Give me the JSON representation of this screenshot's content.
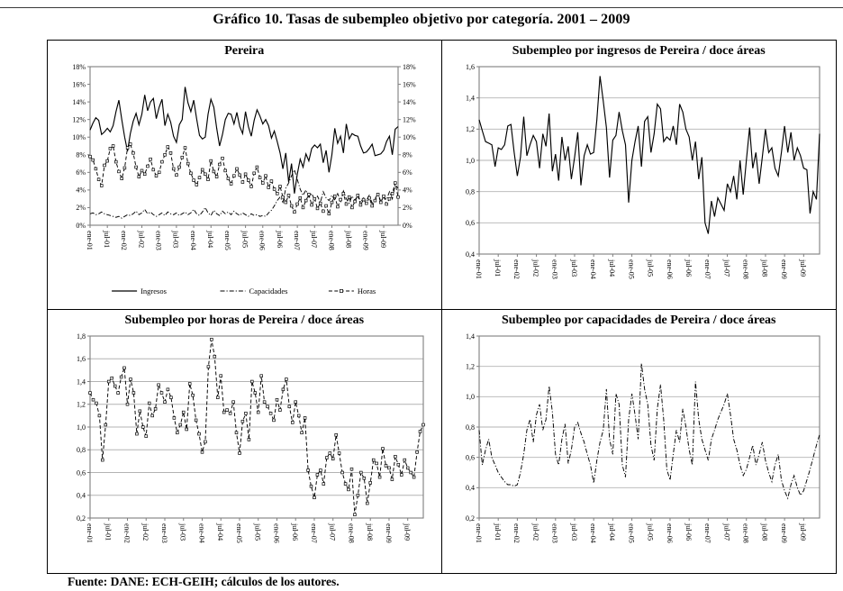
{
  "page": {
    "title": "Gráfico 10. Tasas de subempleo objetivo por categoría. 2001 – 2009",
    "source": "Fuente: DANE: ECH-GEIH; cálculos de los autores."
  },
  "colors": {
    "line": "#000000",
    "grid": "#b3b3b3",
    "axis": "#7f7f7f",
    "text": "#000000"
  },
  "chart_data": [
    {
      "id": "pereira",
      "type": "line",
      "title": "Pereira",
      "y_format": "percent",
      "ylim": [
        0,
        18
      ],
      "ystep": 2,
      "grid": false,
      "dual_axis": true,
      "legend_position": "bottom",
      "x_labels": [
        "ene-01",
        "jul-01",
        "ene-02",
        "jul-02",
        "ene-03",
        "jul-03",
        "ene-04",
        "jul-04",
        "ene-05",
        "jul-05",
        "ene-06",
        "jul-06",
        "ene-07",
        "jul-07",
        "ene-08",
        "jul-08",
        "ene-09",
        "jul-09"
      ],
      "series": [
        {
          "name": "Ingresos",
          "style": "solid",
          "marker": "none",
          "values": [
            10.8,
            11.6,
            12.2,
            11.9,
            10.3,
            10.6,
            11.0,
            10.6,
            11.3,
            12.9,
            14.2,
            12.0,
            10.0,
            8.4,
            10.4,
            11.8,
            12.7,
            11.4,
            12.6,
            14.8,
            13.0,
            14.0,
            14.4,
            12.1,
            13.4,
            14.3,
            11.3,
            12.6,
            11.7,
            10.1,
            9.4,
            11.4,
            12.0,
            15.7,
            13.9,
            12.9,
            14.2,
            12.1,
            10.2,
            9.8,
            10.0,
            12.6,
            14.3,
            13.4,
            11.0,
            9.0,
            10.3,
            12.0,
            12.7,
            12.6,
            11.5,
            12.8,
            11.2,
            10.4,
            12.9,
            11.2,
            10.1,
            11.9,
            13.1,
            12.4,
            11.5,
            12.0,
            11.3,
            9.9,
            10.7,
            9.5,
            8.2,
            6.4,
            8.2,
            4.9,
            7.0,
            3.6,
            5.8,
            7.5,
            6.6,
            8.1,
            7.3,
            8.7,
            9.1,
            8.8,
            9.2,
            7.1,
            8.5,
            6.0,
            8.0,
            11.0,
            9.3,
            10.1,
            8.2,
            11.5,
            9.8,
            10.4,
            10.2,
            10.1,
            9.0,
            8.2,
            8.3,
            8.7,
            9.2,
            7.9,
            8.0,
            8.1,
            8.5,
            9.5,
            10.1,
            8.0,
            10.9,
            11.2
          ]
        },
        {
          "name": "Capacidades",
          "style": "dashdot",
          "marker": "none",
          "values": [
            1.3,
            1.4,
            1.2,
            1.3,
            1.5,
            1.3,
            1.2,
            1.1,
            1.0,
            0.9,
            1.0,
            0.8,
            1.0,
            1.2,
            1.1,
            1.3,
            1.6,
            1.2,
            1.4,
            1.8,
            1.3,
            1.5,
            1.2,
            1.0,
            1.2,
            1.4,
            1.1,
            1.5,
            1.3,
            1.2,
            1.4,
            1.1,
            1.3,
            1.5,
            1.2,
            1.4,
            1.8,
            1.3,
            1.1,
            1.5,
            2.0,
            1.4,
            1.1,
            1.7,
            1.3,
            1.1,
            1.6,
            1.3,
            1.5,
            1.2,
            1.6,
            1.3,
            1.1,
            1.4,
            1.2,
            1.0,
            1.3,
            1.1,
            1.2,
            1.0,
            1.1,
            1.0,
            1.4,
            1.7,
            2.2,
            2.8,
            3.2,
            2.6,
            4.2,
            4.8,
            5.6,
            6.3,
            5.2,
            4.1,
            3.4,
            4.0,
            3.2,
            3.6,
            2.9,
            3.3,
            2.6,
            3.8,
            3.1,
            2.8,
            3.4,
            2.9,
            3.6,
            2.7,
            3.9,
            3.0,
            2.5,
            3.3,
            2.8,
            3.5,
            2.6,
            3.1,
            2.8,
            3.4,
            2.5,
            3.0,
            3.6,
            2.7,
            3.2,
            2.9,
            3.8,
            3.0,
            4.6,
            4.2
          ]
        },
        {
          "name": "Horas",
          "style": "dashed",
          "marker": "square",
          "values": [
            7.8,
            7.4,
            6.4,
            5.2,
            4.5,
            6.8,
            7.3,
            8.7,
            9.0,
            7.2,
            6.1,
            5.3,
            6.5,
            8.8,
            9.2,
            8.2,
            6.6,
            5.5,
            6.2,
            5.8,
            6.7,
            7.5,
            6.3,
            5.6,
            6.0,
            7.2,
            8.0,
            8.9,
            8.2,
            6.4,
            5.7,
            6.6,
            7.7,
            8.8,
            7.0,
            5.9,
            5.1,
            4.6,
            5.4,
            6.3,
            5.8,
            5.2,
            7.3,
            6.1,
            5.5,
            6.9,
            7.6,
            6.2,
            5.3,
            4.7,
            5.6,
            6.4,
            5.7,
            4.9,
            5.8,
            5.1,
            4.4,
            5.9,
            6.6,
            5.4,
            4.8,
            5.6,
            4.3,
            5.0,
            4.1,
            3.6,
            4.4,
            3.2,
            2.6,
            3.4,
            2.2,
            1.5,
            2.4,
            3.1,
            2.0,
            2.8,
            3.5,
            2.3,
            3.0,
            1.9,
            2.5,
            1.6,
            2.2,
            1.3,
            2.6,
            3.3,
            2.1,
            2.9,
            3.6,
            2.4,
            3.2,
            2.0,
            2.7,
            3.4,
            2.3,
            2.9,
            2.5,
            3.1,
            2.2,
            2.8,
            3.5,
            2.6,
            3.3,
            2.4,
            3.0,
            3.6,
            4.8,
            3.2
          ]
        }
      ]
    },
    {
      "id": "ingresos-ratio",
      "type": "line",
      "title": "Subempleo por ingresos de Pereira / doce áreas",
      "y_format": "comma1",
      "ylim": [
        0.4,
        1.6
      ],
      "ystep": 0.2,
      "grid": true,
      "dual_axis": false,
      "x_labels": [
        "ene-01",
        "jul-01",
        "ene-02",
        "jul-02",
        "ene-03",
        "jul-03",
        "ene-04",
        "jul-04",
        "ene-05",
        "jul-05",
        "ene-06",
        "jul-06",
        "ene-07",
        "jul-07",
        "ene-08",
        "jul-08",
        "ene-09",
        "jul-09"
      ],
      "series": [
        {
          "name": "Pereira / doce áreas",
          "style": "solid",
          "marker": "none",
          "values": [
            1.26,
            1.19,
            1.12,
            1.11,
            1.1,
            0.96,
            1.08,
            1.07,
            1.1,
            1.22,
            1.23,
            1.05,
            0.9,
            1.02,
            1.28,
            1.03,
            1.1,
            1.16,
            1.12,
            0.95,
            1.17,
            1.09,
            1.3,
            0.93,
            1.04,
            0.87,
            1.15,
            1.0,
            1.09,
            0.88,
            1.02,
            1.18,
            0.84,
            1.03,
            1.1,
            1.04,
            1.05,
            1.26,
            1.54,
            1.38,
            1.21,
            0.89,
            1.13,
            1.16,
            1.31,
            1.19,
            1.1,
            0.73,
            1.0,
            1.12,
            1.22,
            0.96,
            1.25,
            1.28,
            1.05,
            1.17,
            1.36,
            1.33,
            1.12,
            1.15,
            1.13,
            1.22,
            1.1,
            1.36,
            1.31,
            1.2,
            1.15,
            1.0,
            1.12,
            0.88,
            1.02,
            0.6,
            0.53,
            0.74,
            0.64,
            0.76,
            0.72,
            0.68,
            0.85,
            0.8,
            0.9,
            0.75,
            1.0,
            0.78,
            1.0,
            1.21,
            0.95,
            1.05,
            0.85,
            1.02,
            1.2,
            1.05,
            1.08,
            0.95,
            0.9,
            1.05,
            1.22,
            1.05,
            1.18,
            1.0,
            1.08,
            1.03,
            0.95,
            0.94,
            0.66,
            0.8,
            0.75,
            1.17
          ]
        }
      ]
    },
    {
      "id": "horas-ratio",
      "type": "line",
      "title": "Subempleo por horas de Pereira / doce áreas",
      "y_format": "comma1",
      "ylim": [
        0.2,
        1.8
      ],
      "ystep": 0.2,
      "grid": true,
      "dual_axis": false,
      "x_labels": [
        "ene-01",
        "jul-01",
        "ene-02",
        "jul-02",
        "ene-03",
        "jul-03",
        "ene-04",
        "jul-04",
        "ene-05",
        "jul-05",
        "ene-06",
        "jul-06",
        "ene-07",
        "jul-07",
        "ene-08",
        "jul-08",
        "ene-09",
        "jul-09"
      ],
      "series": [
        {
          "name": "Pereira / doce áreas",
          "style": "dashed",
          "marker": "square",
          "values": [
            1.3,
            1.24,
            1.21,
            1.1,
            0.71,
            1.02,
            1.4,
            1.43,
            1.36,
            1.3,
            1.44,
            1.52,
            1.2,
            1.42,
            1.3,
            0.94,
            1.14,
            1.0,
            0.92,
            1.21,
            1.1,
            1.16,
            1.37,
            1.3,
            1.22,
            1.33,
            1.26,
            1.08,
            0.95,
            1.02,
            1.13,
            0.98,
            1.38,
            1.28,
            1.06,
            0.94,
            0.78,
            0.87,
            1.53,
            1.77,
            1.62,
            1.26,
            1.45,
            1.13,
            1.15,
            1.12,
            1.22,
            0.95,
            0.77,
            1.05,
            1.12,
            0.89,
            1.4,
            1.3,
            1.13,
            1.45,
            1.22,
            1.18,
            1.12,
            1.06,
            1.24,
            1.15,
            1.33,
            1.42,
            1.18,
            1.04,
            1.22,
            1.1,
            0.95,
            1.08,
            0.62,
            0.48,
            0.38,
            0.58,
            0.62,
            0.5,
            0.73,
            0.77,
            0.72,
            0.93,
            0.77,
            0.6,
            0.5,
            0.45,
            0.63,
            0.23,
            0.4,
            0.6,
            0.55,
            0.33,
            0.51,
            0.71,
            0.68,
            0.56,
            0.81,
            0.66,
            0.64,
            0.54,
            0.74,
            0.67,
            0.58,
            0.71,
            0.64,
            0.6,
            0.56,
            0.78,
            0.96,
            1.02
          ]
        }
      ]
    },
    {
      "id": "capacidades-ratio",
      "type": "line",
      "title": "Subempleo por capacidades de Pereira / doce áreas",
      "y_format": "comma1",
      "ylim": [
        0.2,
        1.4
      ],
      "ystep": 0.2,
      "grid": true,
      "dual_axis": false,
      "x_labels": [
        "ene-01",
        "jul-01",
        "ene-02",
        "jul-02",
        "ene-03",
        "jul-03",
        "ene-04",
        "jul-04",
        "ene-05",
        "jul-05",
        "ene-06",
        "jul-06",
        "ene-07",
        "jul-07",
        "ene-08",
        "jul-08",
        "ene-09",
        "jul-09"
      ],
      "series": [
        {
          "name": "Pereira / doce áreas",
          "style": "dashdot",
          "marker": "none",
          "values": [
            0.78,
            0.55,
            0.65,
            0.72,
            0.6,
            0.55,
            0.5,
            0.47,
            0.44,
            0.42,
            0.42,
            0.41,
            0.42,
            0.5,
            0.62,
            0.78,
            0.85,
            0.7,
            0.88,
            0.95,
            0.78,
            0.85,
            1.07,
            0.9,
            0.62,
            0.55,
            0.72,
            0.82,
            0.56,
            0.65,
            0.8,
            0.83,
            0.76,
            0.7,
            0.62,
            0.55,
            0.43,
            0.58,
            0.7,
            0.78,
            1.05,
            0.72,
            0.62,
            1.02,
            0.95,
            0.55,
            0.47,
            0.85,
            1.02,
            0.88,
            0.72,
            1.22,
            1.05,
            0.95,
            0.68,
            0.58,
            0.92,
            1.08,
            0.85,
            0.52,
            0.45,
            0.62,
            0.78,
            0.7,
            0.92,
            0.8,
            0.65,
            0.55,
            1.1,
            0.85,
            0.72,
            0.65,
            0.58,
            0.72,
            0.78,
            0.85,
            0.9,
            0.95,
            1.02,
            0.88,
            0.72,
            0.65,
            0.55,
            0.48,
            0.52,
            0.6,
            0.68,
            0.55,
            0.62,
            0.7,
            0.58,
            0.5,
            0.44,
            0.55,
            0.62,
            0.45,
            0.38,
            0.33,
            0.42,
            0.48,
            0.4,
            0.35,
            0.38,
            0.45,
            0.52,
            0.6,
            0.68,
            0.75
          ]
        }
      ]
    }
  ]
}
